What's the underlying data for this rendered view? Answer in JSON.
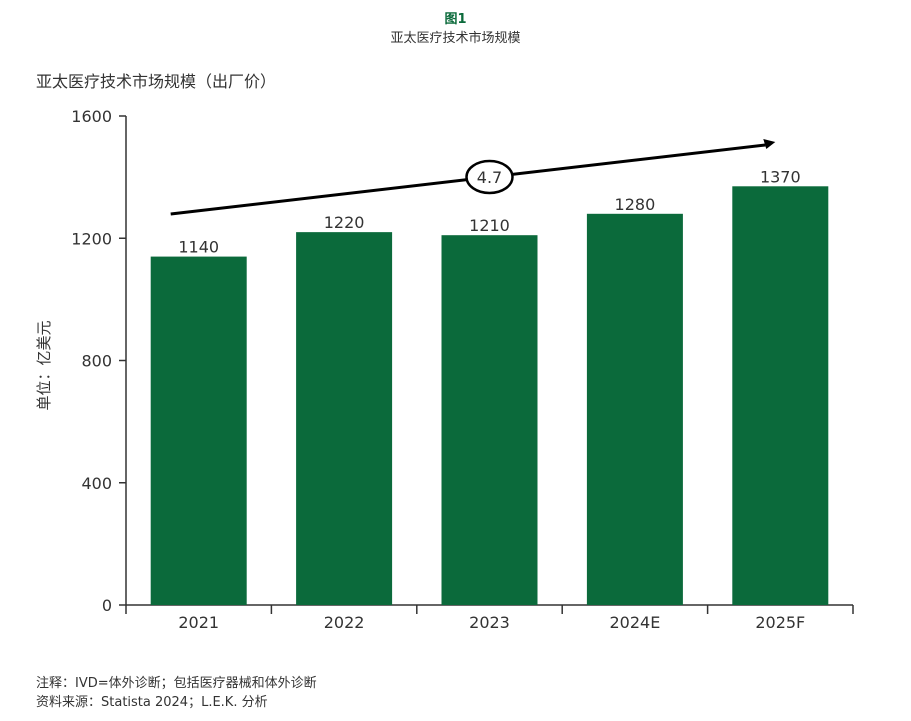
{
  "figure": {
    "number": "图1",
    "title": "亚太医疗技术市场规模"
  },
  "chart_data": {
    "type": "bar",
    "title": "亚太医疗技术市场规模（出厂价）",
    "ylabel": "单位：亿美元",
    "xlabel": "",
    "categories": [
      "2021",
      "2022",
      "2023",
      "2024E",
      "2025F"
    ],
    "values": [
      1140,
      1220,
      1210,
      1280,
      1370
    ],
    "value_labels": [
      "1140",
      "1220",
      "1210",
      "1280",
      "1370"
    ],
    "ylim": [
      0,
      1600
    ],
    "yticks": [
      0,
      400,
      800,
      1200,
      1600
    ],
    "ytick_labels": [
      "0",
      "400",
      "800",
      "1200",
      "1600"
    ],
    "grid": false,
    "bar_color": "#0b6a3b",
    "trend_annotation": {
      "label": "4.7",
      "from_category": "2021",
      "to_category": "2025F"
    }
  },
  "notes": {
    "note": "注释：IVD=体外诊断；包括医疗器械和体外诊断",
    "source": "资料来源：Statista 2024；L.E.K. 分析"
  }
}
